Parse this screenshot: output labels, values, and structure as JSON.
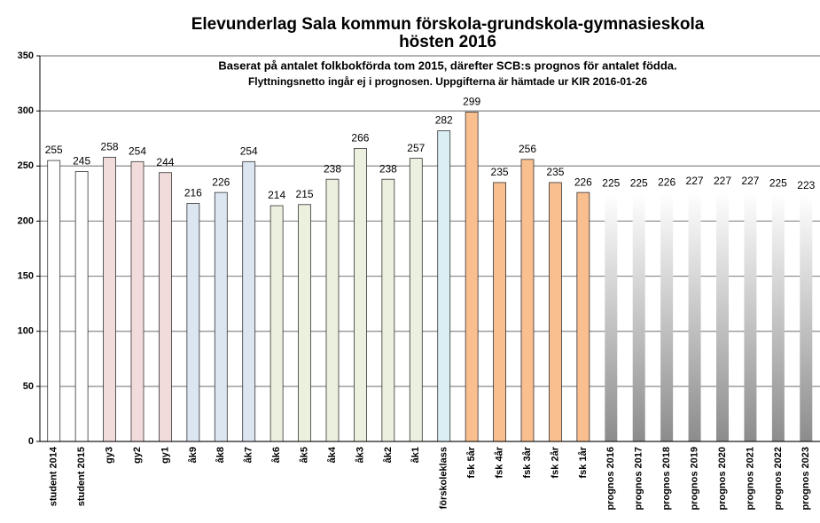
{
  "chart_data": {
    "type": "bar",
    "title": [
      "Elevunderlag Sala kommun förskola-grundskola-gymnasieskola",
      "hösten 2016"
    ],
    "subtitle": [
      "Baserat på antalet folkbokförda tom 2015, därefter SCB:s prognos för antalet födda.",
      "Flyttningsnetto ingår ej i prognosen. Uppgifterna är hämtade ur  KIR 2016-01-26"
    ],
    "categories": [
      "student 2014",
      "student 2015",
      "gy3",
      "gy2",
      "gy1",
      "åk9",
      "åk8",
      "åk7",
      "åk6",
      "åk5",
      "åk4",
      "åk3",
      "åk2",
      "åk1",
      "förskoleklass",
      "fsk 5år",
      "fsk 4år",
      "fsk 3år",
      "fsk 2år",
      "fsk 1år",
      "prognos 2016",
      "prognos 2017",
      "prognos 2018",
      "prognos 2019",
      "prognos 2020",
      "prognos 2021",
      "prognos 2022",
      "prognos 2023"
    ],
    "values": [
      255,
      245,
      258,
      254,
      244,
      216,
      226,
      254,
      214,
      215,
      238,
      266,
      238,
      257,
      282,
      299,
      235,
      256,
      235,
      226,
      225,
      225,
      226,
      227,
      227,
      227,
      225,
      223
    ],
    "colors": [
      "#ffffff",
      "#ffffff",
      "#f2dcdb",
      "#f2dcdb",
      "#f2dcdb",
      "#dce6f1",
      "#dce6f1",
      "#dce6f1",
      "#ebf1de",
      "#ebf1de",
      "#ebf1de",
      "#ebf1de",
      "#ebf1de",
      "#ebf1de",
      "#daeef3",
      "#fabf8f",
      "#fabf8f",
      "#fabf8f",
      "#fabf8f",
      "#fabf8f",
      "#8c8c8c",
      "#8c8c8c",
      "#8c8c8c",
      "#8c8c8c",
      "#8c8c8c",
      "#8c8c8c",
      "#8c8c8c",
      "#8c8c8c"
    ],
    "gradient": [
      false,
      false,
      false,
      false,
      false,
      false,
      false,
      false,
      false,
      false,
      false,
      false,
      false,
      false,
      false,
      false,
      false,
      false,
      false,
      false,
      true,
      true,
      true,
      true,
      true,
      true,
      true,
      true
    ],
    "ylim": [
      0,
      350
    ],
    "yticks": [
      0,
      50,
      100,
      150,
      200,
      250,
      300,
      350
    ],
    "grid": true
  }
}
